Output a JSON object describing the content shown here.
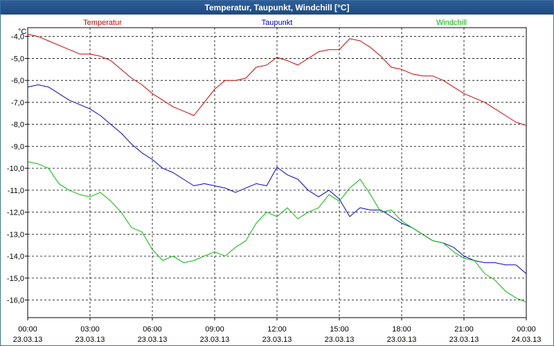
{
  "window": {
    "title": "Temperatur, Taupunkt, Windchill [°C]"
  },
  "chart_data": {
    "type": "line",
    "title": "Temperatur, Taupunkt, Windchill [°C]",
    "ylabel": "°C",
    "xlabel": "",
    "ylim": [
      -16.8,
      -3.6
    ],
    "grid": true,
    "legend_position": "top",
    "y_ticks": [
      {
        "value": -4,
        "label": "-4,0"
      },
      {
        "value": -5,
        "label": "-5,0"
      },
      {
        "value": -6,
        "label": "-6,0"
      },
      {
        "value": -7,
        "label": "-7,0"
      },
      {
        "value": -8,
        "label": "-8,0"
      },
      {
        "value": -9,
        "label": "-9,0"
      },
      {
        "value": -10,
        "label": "-10,0"
      },
      {
        "value": -11,
        "label": "-11,0"
      },
      {
        "value": -12,
        "label": "-12,0"
      },
      {
        "value": -13,
        "label": "-13,0"
      },
      {
        "value": -14,
        "label": "-14,0"
      },
      {
        "value": -15,
        "label": "-15,0"
      },
      {
        "value": -16,
        "label": "-16,0"
      }
    ],
    "x_ticks": [
      {
        "hour": 0,
        "time": "00:00",
        "date": "23.03.13"
      },
      {
        "hour": 3,
        "time": "03:00",
        "date": "23.03.13"
      },
      {
        "hour": 6,
        "time": "06:00",
        "date": "23.03.13"
      },
      {
        "hour": 9,
        "time": "09:00",
        "date": "23.03.13"
      },
      {
        "hour": 12,
        "time": "12:00",
        "date": "23.03.13"
      },
      {
        "hour": 15,
        "time": "15:00",
        "date": "23.03.13"
      },
      {
        "hour": 18,
        "time": "18:00",
        "date": "23.03.13"
      },
      {
        "hour": 21,
        "time": "21:00",
        "date": "23.03.13"
      },
      {
        "hour": 24,
        "time": "00:00",
        "date": "24.03.13"
      }
    ],
    "series": [
      {
        "name": "Temperatur",
        "color": "#cc0000",
        "points": [
          [
            0,
            -3.9
          ],
          [
            0.5,
            -4.0
          ],
          [
            1,
            -4.2
          ],
          [
            1.5,
            -4.4
          ],
          [
            2,
            -4.6
          ],
          [
            2.5,
            -4.8
          ],
          [
            3,
            -4.8
          ],
          [
            3.5,
            -4.9
          ],
          [
            4,
            -5.1
          ],
          [
            4.5,
            -5.5
          ],
          [
            5,
            -5.9
          ],
          [
            5.5,
            -6.2
          ],
          [
            6,
            -6.6
          ],
          [
            6.5,
            -6.9
          ],
          [
            7,
            -7.2
          ],
          [
            7.5,
            -7.4
          ],
          [
            8,
            -7.6
          ],
          [
            8.5,
            -7.0
          ],
          [
            9,
            -6.4
          ],
          [
            9.5,
            -6.0
          ],
          [
            10,
            -6.0
          ],
          [
            10.5,
            -5.9
          ],
          [
            11,
            -5.4
          ],
          [
            11.5,
            -5.3
          ],
          [
            12,
            -4.95
          ],
          [
            12.5,
            -5.1
          ],
          [
            13,
            -5.3
          ],
          [
            13.5,
            -5.0
          ],
          [
            14,
            -4.7
          ],
          [
            14.5,
            -4.6
          ],
          [
            15,
            -4.6
          ],
          [
            15.5,
            -4.1
          ],
          [
            16,
            -4.2
          ],
          [
            16.5,
            -4.5
          ],
          [
            17,
            -4.9
          ],
          [
            17.5,
            -5.4
          ],
          [
            18,
            -5.5
          ],
          [
            18.5,
            -5.7
          ],
          [
            19,
            -5.8
          ],
          [
            19.5,
            -5.8
          ],
          [
            20,
            -6.0
          ],
          [
            20.5,
            -6.3
          ],
          [
            21,
            -6.6
          ],
          [
            21.5,
            -6.8
          ],
          [
            22,
            -7.0
          ],
          [
            22.5,
            -7.3
          ],
          [
            23,
            -7.6
          ],
          [
            23.5,
            -7.9
          ],
          [
            24,
            -8.05
          ]
        ]
      },
      {
        "name": "Taupunkt",
        "color": "#0000cc",
        "points": [
          [
            0,
            -6.3
          ],
          [
            0.5,
            -6.2
          ],
          [
            1,
            -6.3
          ],
          [
            1.5,
            -6.6
          ],
          [
            2,
            -6.9
          ],
          [
            2.5,
            -7.1
          ],
          [
            3,
            -7.3
          ],
          [
            3.5,
            -7.6
          ],
          [
            4,
            -8.0
          ],
          [
            4.5,
            -8.4
          ],
          [
            5,
            -8.9
          ],
          [
            5.5,
            -9.3
          ],
          [
            6,
            -9.6
          ],
          [
            6.5,
            -10.0
          ],
          [
            7,
            -10.2
          ],
          [
            7.5,
            -10.5
          ],
          [
            8,
            -10.8
          ],
          [
            8.5,
            -10.7
          ],
          [
            9,
            -10.8
          ],
          [
            9.5,
            -10.9
          ],
          [
            10,
            -11.1
          ],
          [
            10.5,
            -10.9
          ],
          [
            11,
            -10.7
          ],
          [
            11.5,
            -10.8
          ],
          [
            12,
            -9.95
          ],
          [
            12.5,
            -10.3
          ],
          [
            13,
            -10.5
          ],
          [
            13.5,
            -11.0
          ],
          [
            14,
            -11.3
          ],
          [
            14.5,
            -11.0
          ],
          [
            15,
            -11.4
          ],
          [
            15.5,
            -12.2
          ],
          [
            16,
            -11.8
          ],
          [
            16.5,
            -11.9
          ],
          [
            17,
            -11.9
          ],
          [
            17.5,
            -12.2
          ],
          [
            18,
            -12.5
          ],
          [
            18.5,
            -12.7
          ],
          [
            19,
            -13.0
          ],
          [
            19.5,
            -13.3
          ],
          [
            20,
            -13.4
          ],
          [
            20.5,
            -13.6
          ],
          [
            21,
            -14.0
          ],
          [
            21.5,
            -14.2
          ],
          [
            22,
            -14.3
          ],
          [
            22.5,
            -14.3
          ],
          [
            23,
            -14.4
          ],
          [
            23.5,
            -14.4
          ],
          [
            24,
            -14.8
          ]
        ]
      },
      {
        "name": "Windchill",
        "color": "#00bb00",
        "points": [
          [
            0,
            -9.7
          ],
          [
            0.5,
            -9.8
          ],
          [
            1,
            -10.0
          ],
          [
            1.5,
            -10.7
          ],
          [
            2,
            -11.0
          ],
          [
            2.5,
            -11.2
          ],
          [
            3,
            -11.3
          ],
          [
            3.5,
            -11.1
          ],
          [
            4,
            -11.5
          ],
          [
            4.5,
            -12.0
          ],
          [
            5,
            -12.7
          ],
          [
            5.5,
            -12.9
          ],
          [
            6,
            -13.7
          ],
          [
            6.5,
            -14.2
          ],
          [
            7,
            -14.0
          ],
          [
            7.5,
            -14.3
          ],
          [
            8,
            -14.2
          ],
          [
            8.5,
            -14.0
          ],
          [
            9,
            -13.8
          ],
          [
            9.5,
            -14.0
          ],
          [
            10,
            -13.6
          ],
          [
            10.5,
            -13.3
          ],
          [
            11,
            -12.5
          ],
          [
            11.5,
            -12.0
          ],
          [
            12,
            -12.2
          ],
          [
            12.5,
            -11.8
          ],
          [
            13,
            -12.3
          ],
          [
            13.5,
            -12.0
          ],
          [
            14,
            -11.8
          ],
          [
            14.5,
            -11.2
          ],
          [
            15,
            -11.5
          ],
          [
            15.5,
            -10.9
          ],
          [
            16,
            -10.5
          ],
          [
            16.5,
            -11.2
          ],
          [
            17,
            -12.0
          ],
          [
            17.5,
            -11.9
          ],
          [
            18,
            -12.4
          ],
          [
            18.5,
            -12.7
          ],
          [
            19,
            -13.0
          ],
          [
            19.5,
            -13.3
          ],
          [
            20,
            -13.4
          ],
          [
            20.5,
            -13.8
          ],
          [
            21,
            -14.1
          ],
          [
            21.5,
            -14.2
          ],
          [
            22,
            -14.8
          ],
          [
            22.5,
            -15.1
          ],
          [
            23,
            -15.6
          ],
          [
            23.5,
            -15.9
          ],
          [
            24,
            -16.1
          ]
        ]
      }
    ]
  }
}
